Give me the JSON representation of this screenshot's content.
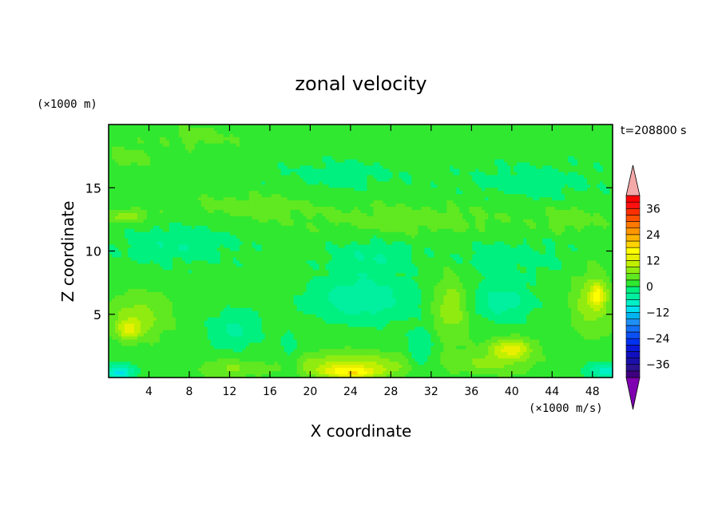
{
  "chart_data": {
    "type": "heatmap",
    "title": "zonal velocity",
    "xlabel": "X coordinate",
    "ylabel": "Z coordinate",
    "x_unit_label": "(×1000 m/s)",
    "y_unit_label": "(×1000 m)",
    "time_label": "t=208800 s",
    "xlim": [
      0,
      50
    ],
    "ylim": [
      0,
      20
    ],
    "x_ticks": [
      4,
      8,
      12,
      16,
      20,
      24,
      28,
      32,
      36,
      40,
      44,
      48
    ],
    "x_tick_labels": [
      "4",
      "8",
      "12",
      "16",
      "20",
      "24",
      "28",
      "32",
      "36",
      "40",
      "44",
      "48"
    ],
    "y_ticks": [
      5,
      10,
      15
    ],
    "y_tick_labels": [
      "5",
      "10",
      "15"
    ],
    "colorbar": {
      "levels": [
        -42,
        -39,
        -36,
        -33,
        -30,
        -27,
        -24,
        -21,
        -18,
        -15,
        -12,
        -9,
        -6,
        -3,
        0,
        3,
        6,
        9,
        12,
        15,
        18,
        21,
        24,
        27,
        30,
        33,
        36,
        39,
        42
      ],
      "tick_values": [
        -36,
        -24,
        -12,
        0,
        12,
        24,
        36
      ],
      "tick_labels": [
        "−36",
        "−24",
        "−12",
        "0",
        "12",
        "24",
        "36"
      ],
      "colors": [
        "#3f007f",
        "#2a1290",
        "#1a0fa8",
        "#1010c0",
        "#0a18d8",
        "#0032f0",
        "#0a50f5",
        "#1470f5",
        "#1e90f5",
        "#00b4f0",
        "#00e0f0",
        "#00f0c8",
        "#00f0a0",
        "#00f080",
        "#30e830",
        "#60e820",
        "#90ec10",
        "#c0f000",
        "#e8f000",
        "#ffff00",
        "#ffd200",
        "#ffb400",
        "#ff9600",
        "#ff7800",
        "#ff5000",
        "#ff3000",
        "#ff1010",
        "#ff0000"
      ],
      "under_color": "#7f00b0",
      "over_color": "#f5a8a8"
    },
    "background_value": 1.5,
    "features": [
      {
        "x": 9,
        "z": 19.0,
        "sx": 3.5,
        "sz": 0.8,
        "v": 3
      },
      {
        "x": 2,
        "z": 17.5,
        "sx": 2.0,
        "sz": 1.0,
        "v": 3
      },
      {
        "x": 23,
        "z": 16.0,
        "sx": 6.0,
        "sz": 1.2,
        "v": -3
      },
      {
        "x": 42,
        "z": 15.5,
        "sx": 7.0,
        "sz": 1.5,
        "v": -3
      },
      {
        "x": 14,
        "z": 13.5,
        "sx": 6.0,
        "sz": 1.0,
        "v": 3
      },
      {
        "x": 30,
        "z": 12.5,
        "sx": 10.0,
        "sz": 1.3,
        "v": 3
      },
      {
        "x": 46,
        "z": 12.5,
        "sx": 3.0,
        "sz": 1.0,
        "v": 3
      },
      {
        "x": 2,
        "z": 12.8,
        "sx": 2.0,
        "sz": 0.5,
        "v": 6
      },
      {
        "x": 7,
        "z": 10.5,
        "sx": 6.0,
        "sz": 1.5,
        "v": -4
      },
      {
        "x": 26,
        "z": 9.5,
        "sx": 4.0,
        "sz": 1.5,
        "v": -4
      },
      {
        "x": 40,
        "z": 9.5,
        "sx": 6.0,
        "sz": 1.5,
        "v": -3
      },
      {
        "x": 25,
        "z": 6.2,
        "sx": 5.0,
        "sz": 1.8,
        "v": -7
      },
      {
        "x": 39,
        "z": 6.0,
        "sx": 3.0,
        "sz": 1.5,
        "v": -6
      },
      {
        "x": 12.5,
        "z": 3.8,
        "sx": 2.5,
        "sz": 1.5,
        "v": -5
      },
      {
        "x": 3,
        "z": 4.8,
        "sx": 3.0,
        "sz": 1.8,
        "v": 6
      },
      {
        "x": 2,
        "z": 3.8,
        "sx": 1.2,
        "sz": 0.8,
        "v": 8
      },
      {
        "x": 34,
        "z": 5.5,
        "sx": 1.8,
        "sz": 2.5,
        "v": 7
      },
      {
        "x": 48,
        "z": 6.0,
        "sx": 2.0,
        "sz": 2.5,
        "v": 7
      },
      {
        "x": 48.5,
        "z": 6.5,
        "sx": 0.7,
        "sz": 0.8,
        "v": 10
      },
      {
        "x": 24,
        "z": 1.0,
        "sx": 6.0,
        "sz": 1.0,
        "v": 8
      },
      {
        "x": 24,
        "z": 0.4,
        "sx": 3.0,
        "sz": 0.5,
        "v": 11
      },
      {
        "x": 40,
        "z": 2.3,
        "sx": 2.0,
        "sz": 0.8,
        "v": 11
      },
      {
        "x": 12,
        "z": 0.7,
        "sx": 3.0,
        "sz": 0.7,
        "v": 5
      },
      {
        "x": 38,
        "z": 1.2,
        "sx": 4.0,
        "sz": 1.0,
        "v": 5
      },
      {
        "x": 31,
        "z": 2.0,
        "sx": 1.2,
        "sz": 2.0,
        "v": -5
      },
      {
        "x": 18,
        "z": 2.0,
        "sx": 1.0,
        "sz": 2.0,
        "v": -3
      },
      {
        "x": 1,
        "z": 0.4,
        "sx": 1.5,
        "sz": 0.6,
        "v": -12
      },
      {
        "x": 49.5,
        "z": 0.5,
        "sx": 2.0,
        "sz": 0.6,
        "v": -10
      },
      {
        "x": 8,
        "z": 2.5,
        "sx": 3.0,
        "sz": 1.0,
        "v": 0
      }
    ]
  }
}
